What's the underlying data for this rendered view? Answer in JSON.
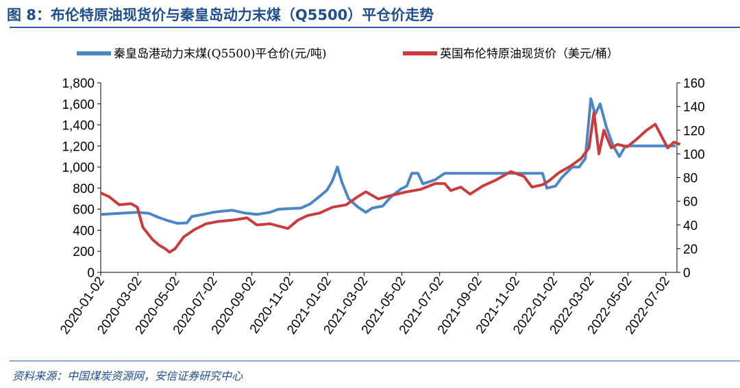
{
  "title": "图 8：布伦特原油现货价与秦皇岛动力末煤（Q5500）平仓价走势",
  "source": "资料来源：中国煤炭资源网，安信证券研究中心",
  "chart_data": {
    "type": "line",
    "title": "图 8：布伦特原油现货价与秦皇岛动力末煤（Q5500）平仓价走势",
    "legend_position": "top",
    "x_ticks": [
      "2020-01-02",
      "2020-03-02",
      "2020-05-02",
      "2020-07-02",
      "2020-09-02",
      "2020-11-02",
      "2021-01-02",
      "2021-03-02",
      "2021-05-02",
      "2021-07-02",
      "2021-09-02",
      "2021-11-02",
      "2022-01-02",
      "2022-03-02",
      "2022-05-02",
      "2022-07-02"
    ],
    "y_left": {
      "lim": [
        0,
        1800
      ],
      "ticks": [
        "0",
        "200",
        "400",
        "600",
        "800",
        "1,000",
        "1,200",
        "1,400",
        "1,600",
        "1,800"
      ]
    },
    "y_right": {
      "lim": [
        0,
        160
      ],
      "ticks": [
        "0",
        "20",
        "40",
        "60",
        "80",
        "100",
        "120",
        "140",
        "160"
      ]
    },
    "series": [
      {
        "name": "秦皇岛港动力末煤(Q5500)平仓价(元/吨)",
        "axis": "left",
        "color": "#4a86c8",
        "points": [
          [
            "2020-01-02",
            550
          ],
          [
            "2020-02-01",
            560
          ],
          [
            "2020-03-01",
            570
          ],
          [
            "2020-03-20",
            560
          ],
          [
            "2020-04-05",
            520
          ],
          [
            "2020-04-20",
            490
          ],
          [
            "2020-05-05",
            465
          ],
          [
            "2020-05-20",
            470
          ],
          [
            "2020-05-28",
            530
          ],
          [
            "2020-06-15",
            550
          ],
          [
            "2020-07-01",
            570
          ],
          [
            "2020-07-15",
            580
          ],
          [
            "2020-08-01",
            590
          ],
          [
            "2020-08-20",
            565
          ],
          [
            "2020-09-10",
            550
          ],
          [
            "2020-10-01",
            570
          ],
          [
            "2020-10-15",
            600
          ],
          [
            "2020-11-01",
            605
          ],
          [
            "2020-11-20",
            610
          ],
          [
            "2020-12-05",
            650
          ],
          [
            "2020-12-20",
            720
          ],
          [
            "2021-01-01",
            780
          ],
          [
            "2021-01-10",
            870
          ],
          [
            "2021-01-18",
            1000
          ],
          [
            "2021-01-25",
            860
          ],
          [
            "2021-02-05",
            700
          ],
          [
            "2021-02-20",
            620
          ],
          [
            "2021-03-05",
            570
          ],
          [
            "2021-03-15",
            610
          ],
          [
            "2021-04-01",
            630
          ],
          [
            "2021-04-15",
            720
          ],
          [
            "2021-04-30",
            790
          ],
          [
            "2021-05-10",
            820
          ],
          [
            "2021-05-18",
            940
          ],
          [
            "2021-05-28",
            940
          ],
          [
            "2021-06-05",
            840
          ],
          [
            "2021-06-25",
            880
          ],
          [
            "2021-07-10",
            940
          ],
          [
            "2021-08-15",
            940
          ],
          [
            "2021-10-01",
            940
          ],
          [
            "2021-11-15",
            940
          ],
          [
            "2021-12-15",
            940
          ],
          [
            "2021-12-22",
            800
          ],
          [
            "2022-01-05",
            820
          ],
          [
            "2022-01-15",
            900
          ],
          [
            "2022-02-01",
            1000
          ],
          [
            "2022-02-12",
            1000
          ],
          [
            "2022-02-22",
            1080
          ],
          [
            "2022-03-03",
            1650
          ],
          [
            "2022-03-10",
            1500
          ],
          [
            "2022-03-18",
            1600
          ],
          [
            "2022-03-28",
            1380
          ],
          [
            "2022-04-08",
            1200
          ],
          [
            "2022-04-18",
            1100
          ],
          [
            "2022-04-28",
            1200
          ],
          [
            "2022-05-15",
            1200
          ],
          [
            "2022-06-15",
            1200
          ],
          [
            "2022-07-10",
            1200
          ],
          [
            "2022-07-18",
            1200
          ]
        ]
      },
      {
        "name": "英国布伦特原油现货价（美元/桶）",
        "axis": "right",
        "color": "#cc3b3b",
        "points": [
          [
            "2020-01-02",
            67
          ],
          [
            "2020-01-15",
            64
          ],
          [
            "2020-02-01",
            57
          ],
          [
            "2020-02-20",
            58
          ],
          [
            "2020-03-01",
            55
          ],
          [
            "2020-03-10",
            38
          ],
          [
            "2020-03-25",
            28
          ],
          [
            "2020-04-05",
            23
          ],
          [
            "2020-04-15",
            20
          ],
          [
            "2020-04-22",
            17
          ],
          [
            "2020-05-01",
            20
          ],
          [
            "2020-05-15",
            30
          ],
          [
            "2020-06-01",
            36
          ],
          [
            "2020-06-20",
            41
          ],
          [
            "2020-07-10",
            43
          ],
          [
            "2020-08-01",
            44
          ],
          [
            "2020-08-25",
            46
          ],
          [
            "2020-09-10",
            40
          ],
          [
            "2020-10-01",
            41
          ],
          [
            "2020-10-30",
            37
          ],
          [
            "2020-11-15",
            44
          ],
          [
            "2020-12-01",
            48
          ],
          [
            "2020-12-20",
            50
          ],
          [
            "2021-01-10",
            55
          ],
          [
            "2021-02-01",
            57
          ],
          [
            "2021-02-20",
            64
          ],
          [
            "2021-03-05",
            68
          ],
          [
            "2021-03-25",
            62
          ],
          [
            "2021-04-15",
            65
          ],
          [
            "2021-05-10",
            68
          ],
          [
            "2021-06-01",
            70
          ],
          [
            "2021-06-25",
            75
          ],
          [
            "2021-07-10",
            75
          ],
          [
            "2021-07-20",
            69
          ],
          [
            "2021-08-05",
            72
          ],
          [
            "2021-08-20",
            66
          ],
          [
            "2021-09-10",
            73
          ],
          [
            "2021-10-01",
            78
          ],
          [
            "2021-10-25",
            85
          ],
          [
            "2021-11-15",
            81
          ],
          [
            "2021-11-28",
            72
          ],
          [
            "2021-12-15",
            74
          ],
          [
            "2021-12-25",
            77
          ],
          [
            "2022-01-10",
            84
          ],
          [
            "2022-01-30",
            90
          ],
          [
            "2022-02-15",
            96
          ],
          [
            "2022-02-28",
            105
          ],
          [
            "2022-03-08",
            135
          ],
          [
            "2022-03-16",
            100
          ],
          [
            "2022-03-24",
            120
          ],
          [
            "2022-04-05",
            105
          ],
          [
            "2022-04-15",
            108
          ],
          [
            "2022-05-01",
            106
          ],
          [
            "2022-05-15",
            112
          ],
          [
            "2022-06-01",
            120
          ],
          [
            "2022-06-15",
            125
          ],
          [
            "2022-06-25",
            115
          ],
          [
            "2022-07-05",
            105
          ],
          [
            "2022-07-15",
            110
          ],
          [
            "2022-07-25",
            108
          ]
        ]
      }
    ]
  }
}
